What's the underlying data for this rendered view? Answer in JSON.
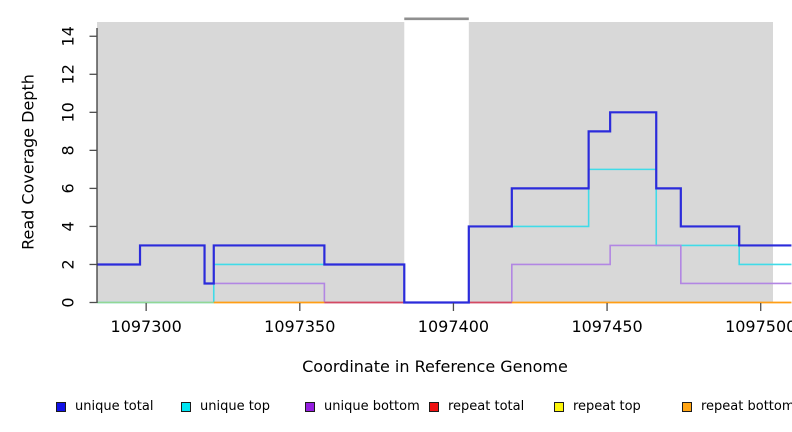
{
  "axes": {
    "x": {
      "label": "Coordinate in Reference Genome",
      "ticks": [
        1097300,
        1097350,
        1097400,
        1097450,
        1097500
      ]
    },
    "y": {
      "label": "Read Coverage Depth",
      "ticks": [
        0,
        2,
        4,
        6,
        8,
        10,
        12,
        14
      ]
    }
  },
  "legend": {
    "items": [
      {
        "label": "unique total",
        "color": "#1212e8"
      },
      {
        "label": "unique top",
        "color": "#00e5f2"
      },
      {
        "label": "unique bottom",
        "color": "#951fe0"
      },
      {
        "label": "repeat total",
        "color": "#ee1111"
      },
      {
        "label": "repeat top",
        "color": "#fdf50a"
      },
      {
        "label": "repeat bottom",
        "color": "#ffa413"
      }
    ]
  },
  "chart_data": {
    "type": "line",
    "subtype": "step-coverage",
    "title": "",
    "xlabel": "Coordinate in Reference Genome",
    "ylabel": "Read Coverage Depth",
    "xlim": [
      1097284,
      1097504
    ],
    "ylim": [
      0,
      14.75
    ],
    "grid": false,
    "plot_bg": "#d8d8d8",
    "masked_region": {
      "from": 1097384,
      "to": 1097405,
      "fill": "#ffffff",
      "border": "#8f8f8f"
    },
    "breakpoints": [
      1097284,
      1097298,
      1097319,
      1097322,
      1097358,
      1097384,
      1097405,
      1097419,
      1097444,
      1097451,
      1097466,
      1097474,
      1097493,
      1097510
    ],
    "series": [
      {
        "name": "unique total",
        "color": "#2b2bdb",
        "width": 2.2,
        "z": 6,
        "hidden": false,
        "values": [
          2,
          3,
          1,
          3,
          2,
          0,
          4,
          6,
          9,
          10,
          6,
          4,
          3
        ]
      },
      {
        "name": "unique top",
        "color": "#40dbe8",
        "width": 1.6,
        "z": 1,
        "hidden": false,
        "values": [
          0,
          0,
          0,
          2,
          2,
          0,
          4,
          4,
          7,
          7,
          3,
          3,
          2
        ]
      },
      {
        "name": "unique bottom",
        "color": "#b286e3",
        "width": 1.6,
        "z": 3,
        "hidden": false,
        "values": [
          2,
          3,
          1,
          1,
          0,
          0,
          0,
          2,
          2,
          3,
          3,
          1,
          1
        ]
      },
      {
        "name": "repeat total",
        "color": "#ee1111",
        "width": 1.6,
        "z": 0,
        "hidden": true,
        "values": [
          0,
          0,
          0,
          0,
          0,
          0,
          0,
          0,
          0,
          0,
          0,
          0,
          0
        ]
      },
      {
        "name": "repeat top",
        "color": "#fdf50a",
        "width": 1.6,
        "z": 0,
        "hidden": true,
        "values": [
          0,
          0,
          0,
          0,
          0,
          0,
          0,
          0,
          0,
          0,
          0,
          0,
          0
        ]
      },
      {
        "name": "repeat bottom",
        "color": "#ffa413",
        "width": 1.6,
        "z": 0,
        "hidden": true,
        "values": [
          0,
          0,
          0,
          0,
          0,
          0,
          0,
          0,
          0,
          0,
          0,
          0,
          0
        ]
      }
    ],
    "baseline_segments": [
      {
        "from": 1097284,
        "to": 1097322,
        "color": "#94d794",
        "width": 1.6,
        "z": 2
      },
      {
        "from": 1097322,
        "to": 1097358,
        "color": "#ff9e15",
        "width": 1.8,
        "z": 5
      },
      {
        "from": 1097358,
        "to": 1097384,
        "color": "#d44a62",
        "width": 1.7,
        "z": 4
      },
      {
        "from": 1097405,
        "to": 1097419,
        "color": "#d44a62",
        "width": 1.7,
        "z": 4
      },
      {
        "from": 1097419,
        "to": 1097510,
        "color": "#ff9e15",
        "width": 1.8,
        "z": 5
      }
    ]
  }
}
